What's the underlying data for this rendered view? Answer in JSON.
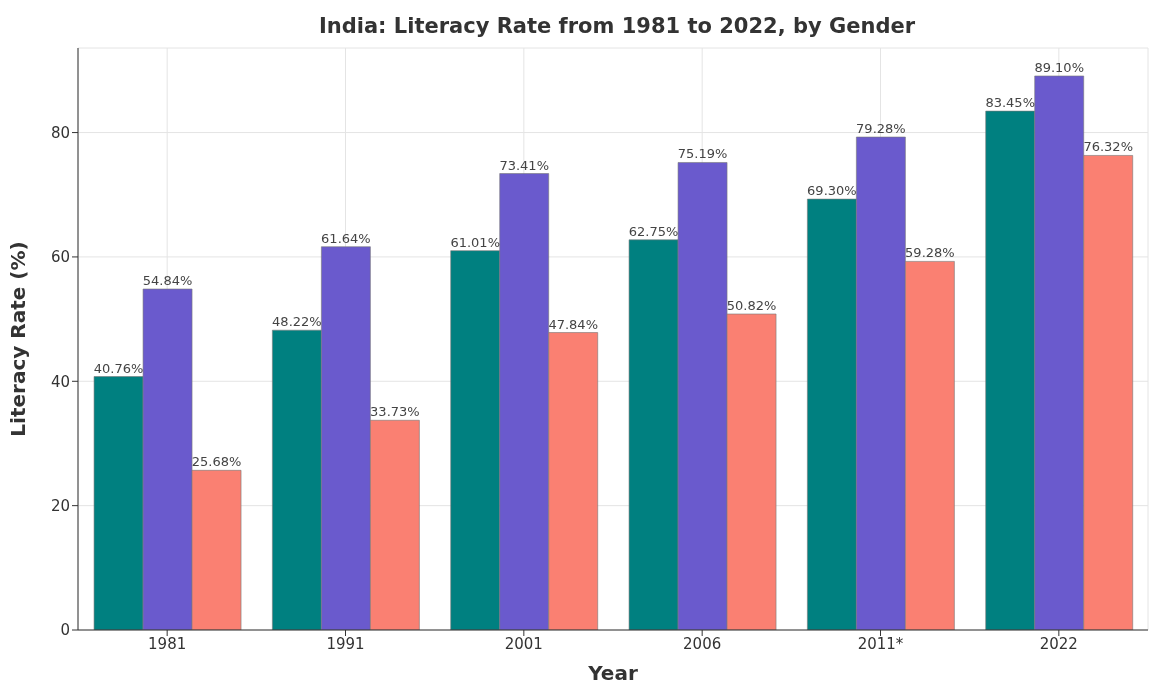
{
  "chart_data": {
    "type": "bar",
    "title": "India: Literacy Rate from 1981 to 2022, by Gender",
    "xlabel": "Year",
    "ylabel": "Literacy Rate (%)",
    "categories": [
      "1981",
      "1991",
      "2001",
      "2006",
      "2011*",
      "2022"
    ],
    "series": [
      {
        "color": "#008080",
        "values": [
          40.76,
          48.22,
          61.01,
          62.75,
          69.3,
          83.45
        ],
        "value_labels": [
          "40.76%",
          "48.22%",
          "61.01%",
          "62.75%",
          "69.30%",
          "83.45%"
        ]
      },
      {
        "color": "#6a5acd",
        "values": [
          54.84,
          61.64,
          73.41,
          75.19,
          79.28,
          89.1
        ],
        "value_labels": [
          "54.84%",
          "61.64%",
          "73.41%",
          "75.19%",
          "79.28%",
          "89.10%"
        ]
      },
      {
        "color": "#fa8072",
        "values": [
          25.68,
          33.73,
          47.84,
          50.82,
          59.28,
          76.32
        ],
        "value_labels": [
          "25.68%",
          "33.73%",
          "47.84%",
          "50.82%",
          "59.28%",
          "76.32%"
        ]
      }
    ],
    "ylim": [
      0,
      93.6
    ],
    "yticks": [
      0,
      20,
      40,
      60,
      80
    ],
    "grid": true
  }
}
